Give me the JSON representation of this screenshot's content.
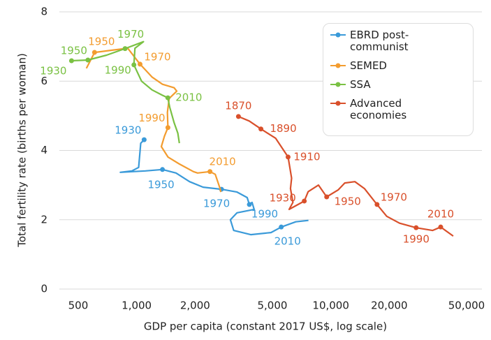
{
  "chart_data": {
    "type": "line",
    "xlabel": "GDP per capita (constant 2017 US$, log scale)",
    "ylabel": "Total fertility rate (births per woman)",
    "xscale": "log",
    "xlim": [
      400,
      60000
    ],
    "ylim": [
      0,
      8
    ],
    "xticks": [
      500,
      {
        "value": 1000,
        "label": "1,000"
      },
      {
        "value": 2000,
        "label": "2,000"
      },
      {
        "value": 5000,
        "label": "5,000"
      },
      {
        "value": 10000,
        "label": "10,000"
      },
      {
        "value": 20000,
        "label": "20,000"
      },
      {
        "value": 50000,
        "label": "50,000"
      }
    ],
    "yticks": [
      0,
      2,
      4,
      6,
      8
    ],
    "grid": true,
    "legend": "upper right",
    "series": [
      {
        "name": "EBRD post-communist",
        "color": "#3a9ad9",
        "x": [
          1093,
          1050,
          1024,
          945,
          824,
          1110,
          1358,
          1595,
          1873,
          2200,
          2734,
          3290,
          3710,
          3806,
          3930,
          4030,
          3290,
          3040,
          3160,
          3870,
          4920,
          5555,
          6600,
          7670
        ],
        "y": [
          4.31,
          4.21,
          3.51,
          3.41,
          3.37,
          3.41,
          3.45,
          3.35,
          3.1,
          2.94,
          2.88,
          2.8,
          2.64,
          2.44,
          2.5,
          2.3,
          2.2,
          2.0,
          1.69,
          1.57,
          1.63,
          1.79,
          1.94,
          1.98
        ],
        "points": [
          {
            "label": "1930",
            "x": 1093,
            "y": 4.31
          },
          {
            "label": "1950",
            "x": 1358,
            "y": 3.45
          },
          {
            "label": "1970",
            "x": 2734,
            "y": 2.88
          },
          {
            "label": "1990",
            "x": 3806,
            "y": 2.44
          },
          {
            "label": "2010",
            "x": 5555,
            "y": 1.79
          }
        ]
      },
      {
        "name": "SEMED",
        "color": "#f39c2f",
        "x": [
          551,
          607,
          760,
          900,
          1041,
          1200,
          1358,
          1560,
          1610,
          1470,
          1440,
          1449,
          1390,
          1340,
          1450,
          1660,
          1960,
          2060,
          2386,
          2540,
          2690,
          2713
        ],
        "y": [
          6.37,
          6.83,
          6.9,
          6.95,
          6.49,
          6.12,
          5.91,
          5.81,
          5.71,
          5.5,
          5.1,
          4.66,
          4.41,
          4.11,
          3.81,
          3.61,
          3.39,
          3.35,
          3.39,
          3.31,
          2.9,
          2.8
        ],
        "points": [
          {
            "label": "1950",
            "x": 607,
            "y": 6.83
          },
          {
            "label": "1970",
            "x": 1041,
            "y": 6.49
          },
          {
            "label": "1990",
            "x": 1449,
            "y": 4.66
          },
          {
            "label": "2010",
            "x": 2386,
            "y": 3.39
          }
        ]
      },
      {
        "name": "SSA",
        "color": "#7ac143",
        "x": [
          462,
          561,
          700,
          872,
          1084,
          980,
          968,
          1060,
          1200,
          1350,
          1448,
          1480,
          1560,
          1630,
          1660
        ],
        "y": [
          6.59,
          6.61,
          6.75,
          6.94,
          7.14,
          6.95,
          6.47,
          6.0,
          5.75,
          5.6,
          5.52,
          5.25,
          4.8,
          4.5,
          4.21
        ],
        "points": [
          {
            "label": "1930",
            "x": 462,
            "y": 6.59
          },
          {
            "label": "1950",
            "x": 561,
            "y": 6.61
          },
          {
            "label": "1970",
            "x": 872,
            "y": 6.94
          },
          {
            "label": "1990",
            "x": 968,
            "y": 6.47
          },
          {
            "label": "2010",
            "x": 1448,
            "y": 5.52
          }
        ]
      },
      {
        "name": "Advanced economies",
        "color": "#d9502b",
        "x": [
          3344,
          3800,
          4365,
          5200,
          6025,
          6280,
          6200,
          6380,
          6100,
          7300,
          7640,
          8640,
          9520,
          10900,
          11800,
          13300,
          14900,
          17300,
          19400,
          22600,
          27500,
          33400,
          36800,
          42700
        ],
        "y": [
          4.98,
          4.85,
          4.62,
          4.35,
          3.81,
          3.2,
          2.9,
          2.5,
          2.3,
          2.54,
          2.81,
          3.0,
          2.66,
          2.86,
          3.06,
          3.1,
          2.9,
          2.44,
          2.1,
          1.9,
          1.77,
          1.69,
          1.79,
          1.53
        ],
        "points": [
          {
            "label": "1870",
            "x": 3344,
            "y": 4.98
          },
          {
            "label": "1890",
            "x": 4365,
            "y": 4.62
          },
          {
            "label": "1910",
            "x": 6025,
            "y": 3.81
          },
          {
            "label": "1930",
            "x": 7300,
            "y": 2.54
          },
          {
            "label": "1950",
            "x": 9520,
            "y": 2.66
          },
          {
            "label": "1970",
            "x": 17300,
            "y": 2.44
          },
          {
            "label": "1990",
            "x": 27500,
            "y": 1.77
          },
          {
            "label": "2010",
            "x": 36800,
            "y": 1.79
          }
        ]
      }
    ]
  }
}
